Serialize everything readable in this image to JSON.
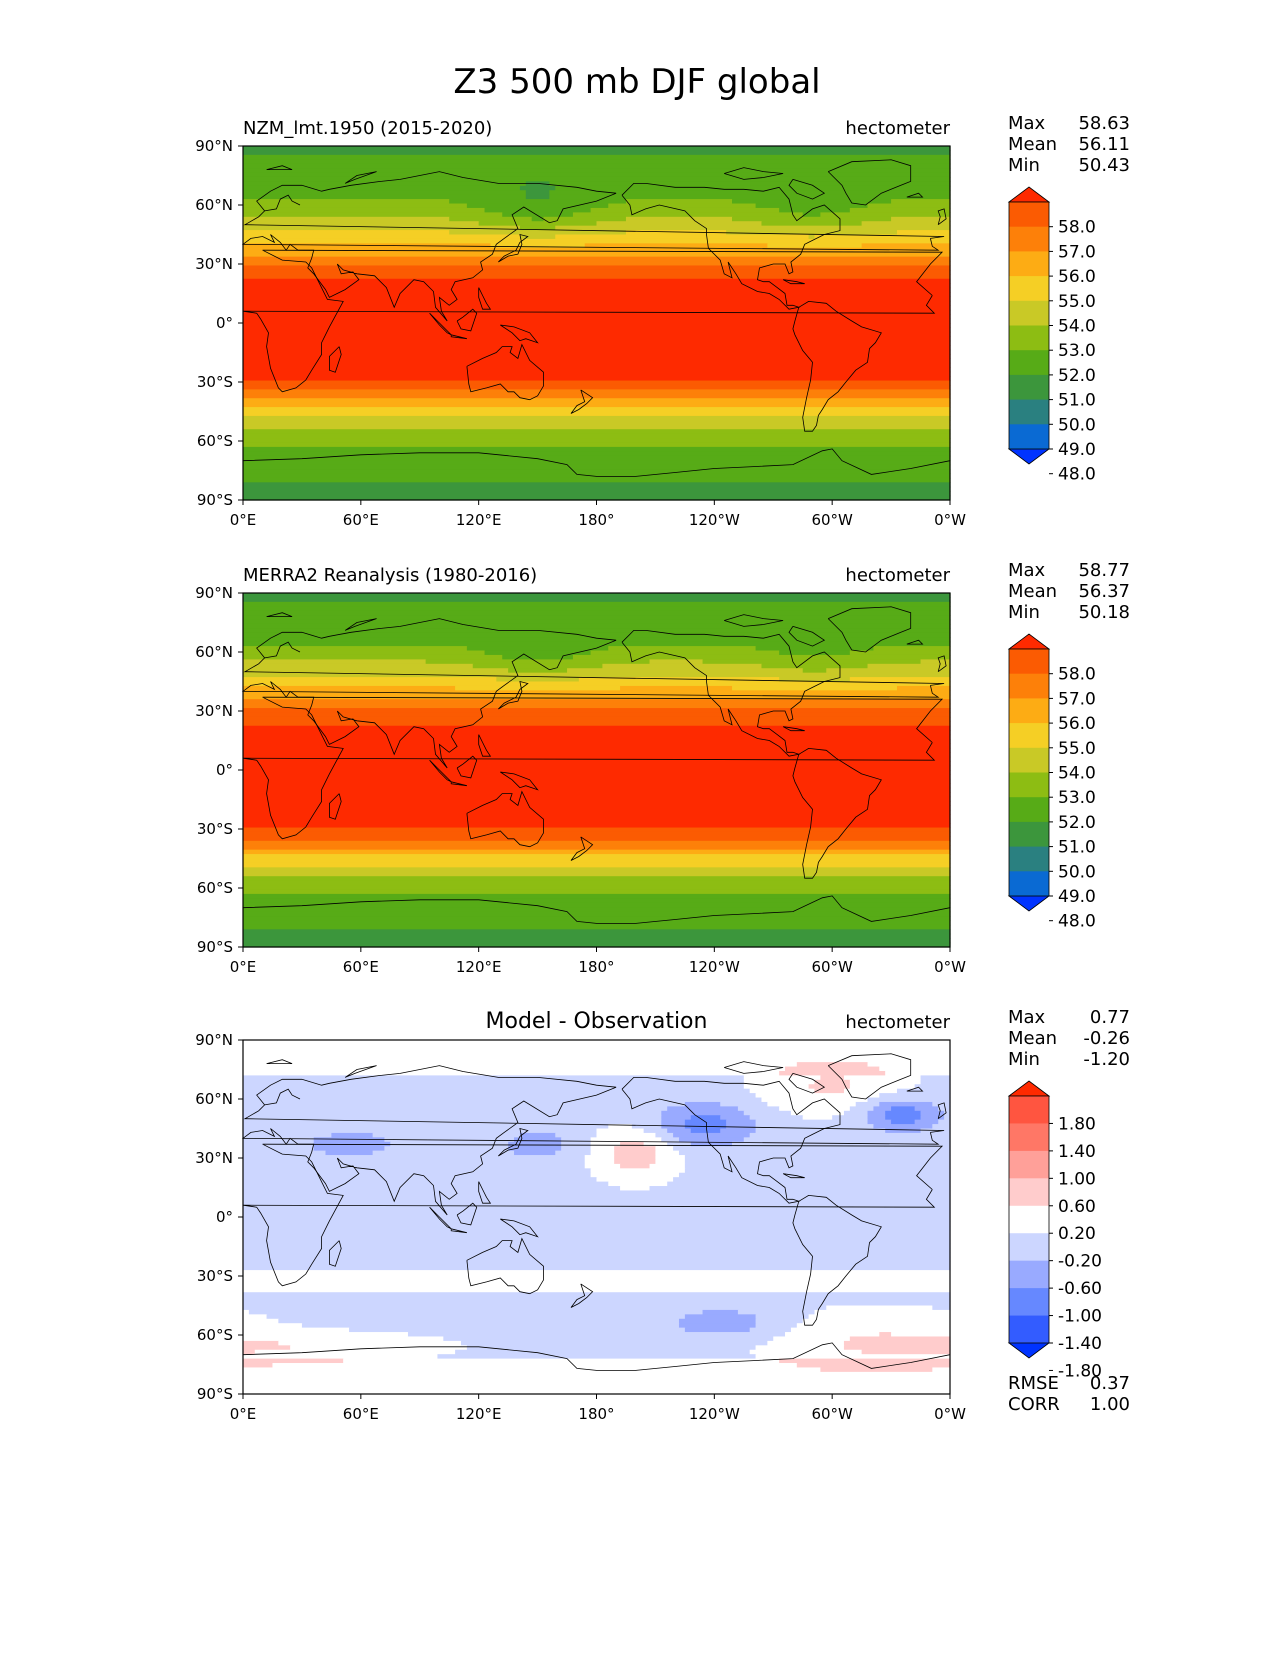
{
  "title": "Z3 500 mb DJF global",
  "colors": {
    "seq": [
      "#0033ff",
      "#0a6ad3",
      "#2a8080",
      "#3c963c",
      "#57ab17",
      "#8dbd13",
      "#c9c926",
      "#f5cf25",
      "#fdac14",
      "#fd8009",
      "#fb5b02",
      "#fe2a00"
    ],
    "diff": [
      "#0033ff",
      "#335cff",
      "#6688ff",
      "#99aaff",
      "#ccd6ff",
      "#ffffff",
      "#ffcccc",
      "#ffa099",
      "#ff7766",
      "#ff5540",
      "#ff2a00"
    ],
    "frame": "#000000"
  },
  "axes": {
    "x_ticks": [
      "0°E",
      "60°E",
      "120°E",
      "180°",
      "120°W",
      "60°W",
      "0°W"
    ],
    "y_ticks": [
      "90°N",
      "60°N",
      "30°N",
      "0°",
      "30°S",
      "60°S",
      "90°S"
    ]
  },
  "panels": [
    {
      "left_title": "NZM_lmt.1950 (2015-2020)",
      "center_title": "",
      "units": "hectometer",
      "stats": [
        {
          "label": "Max",
          "value": "58.63"
        },
        {
          "label": "Mean",
          "value": "56.11"
        },
        {
          "label": "Min",
          "value": "50.43"
        }
      ],
      "colorbar_labels": [
        "58.0",
        "57.0",
        "56.0",
        "55.0",
        "54.0",
        "53.0",
        "52.0",
        "51.0",
        "50.0",
        "49.0",
        "48.0"
      ],
      "footer_stats": []
    },
    {
      "left_title": "MERRA2 Reanalysis (1980-2016)",
      "center_title": "",
      "units": "hectometer",
      "stats": [
        {
          "label": "Max",
          "value": "58.77"
        },
        {
          "label": "Mean",
          "value": "56.37"
        },
        {
          "label": "Min",
          "value": "50.18"
        }
      ],
      "colorbar_labels": [
        "58.0",
        "57.0",
        "56.0",
        "55.0",
        "54.0",
        "53.0",
        "52.0",
        "51.0",
        "50.0",
        "49.0",
        "48.0"
      ],
      "footer_stats": []
    },
    {
      "left_title": "",
      "center_title": "Model - Observation",
      "units": "hectometer",
      "stats": [
        {
          "label": "Max",
          "value": "0.77"
        },
        {
          "label": "Mean",
          "value": "-0.26"
        },
        {
          "label": "Min",
          "value": "-1.20"
        }
      ],
      "colorbar_labels": [
        "1.80",
        "1.40",
        "1.00",
        "0.60",
        "0.20",
        "-0.20",
        "-0.60",
        "-1.00",
        "-1.40",
        "-1.80"
      ],
      "footer_stats": [
        {
          "label": "RMSE",
          "value": "0.37"
        },
        {
          "label": "CORR",
          "value": "1.00"
        }
      ]
    }
  ],
  "chart_data": [
    {
      "type": "heatmap",
      "title": "NZM_lmt.1950 (2015-2020)",
      "units": "hectometer",
      "xlim": [
        0,
        360
      ],
      "ylim": [
        -90,
        90
      ],
      "levels": [
        48,
        49,
        50,
        51,
        52,
        53,
        54,
        55,
        56,
        57,
        58
      ],
      "zonal_profile": {
        "lat": [
          -90,
          -70,
          -55,
          -45,
          -38,
          -32,
          -25,
          0,
          20,
          30,
          40,
          50,
          60,
          70,
          90
        ],
        "value": [
          50.7,
          51.3,
          52.8,
          54.5,
          56.3,
          57.6,
          58.4,
          58.6,
          58.3,
          56.8,
          55.0,
          53.5,
          52.3,
          51.4,
          50.9
        ]
      },
      "stats": {
        "max": 58.63,
        "mean": 56.11,
        "min": 50.43
      }
    },
    {
      "type": "heatmap",
      "title": "MERRA2 Reanalysis (1980-2016)",
      "units": "hectometer",
      "xlim": [
        0,
        360
      ],
      "ylim": [
        -90,
        90
      ],
      "levels": [
        48,
        49,
        50,
        51,
        52,
        53,
        54,
        55,
        56,
        57,
        58
      ],
      "zonal_profile": {
        "lat": [
          -90,
          -70,
          -55,
          -45,
          -38,
          -32,
          -25,
          0,
          20,
          30,
          40,
          50,
          60,
          70,
          90
        ],
        "value": [
          50.8,
          51.3,
          52.9,
          54.7,
          56.5,
          57.7,
          58.5,
          58.7,
          58.5,
          57.1,
          55.3,
          53.7,
          52.4,
          51.4,
          50.9
        ]
      },
      "stats": {
        "max": 58.77,
        "mean": 56.37,
        "min": 50.18
      }
    },
    {
      "type": "heatmap",
      "title": "Model - Observation",
      "units": "hectometer",
      "xlim": [
        0,
        360
      ],
      "ylim": [
        -90,
        90
      ],
      "levels": [
        -1.8,
        -1.4,
        -1.0,
        -0.6,
        -0.2,
        0.2,
        0.6,
        1.0,
        1.4,
        1.8
      ],
      "stats": {
        "max": 0.77,
        "mean": -0.26,
        "min": -1.2,
        "rmse": 0.37,
        "corr": 1.0
      }
    }
  ]
}
